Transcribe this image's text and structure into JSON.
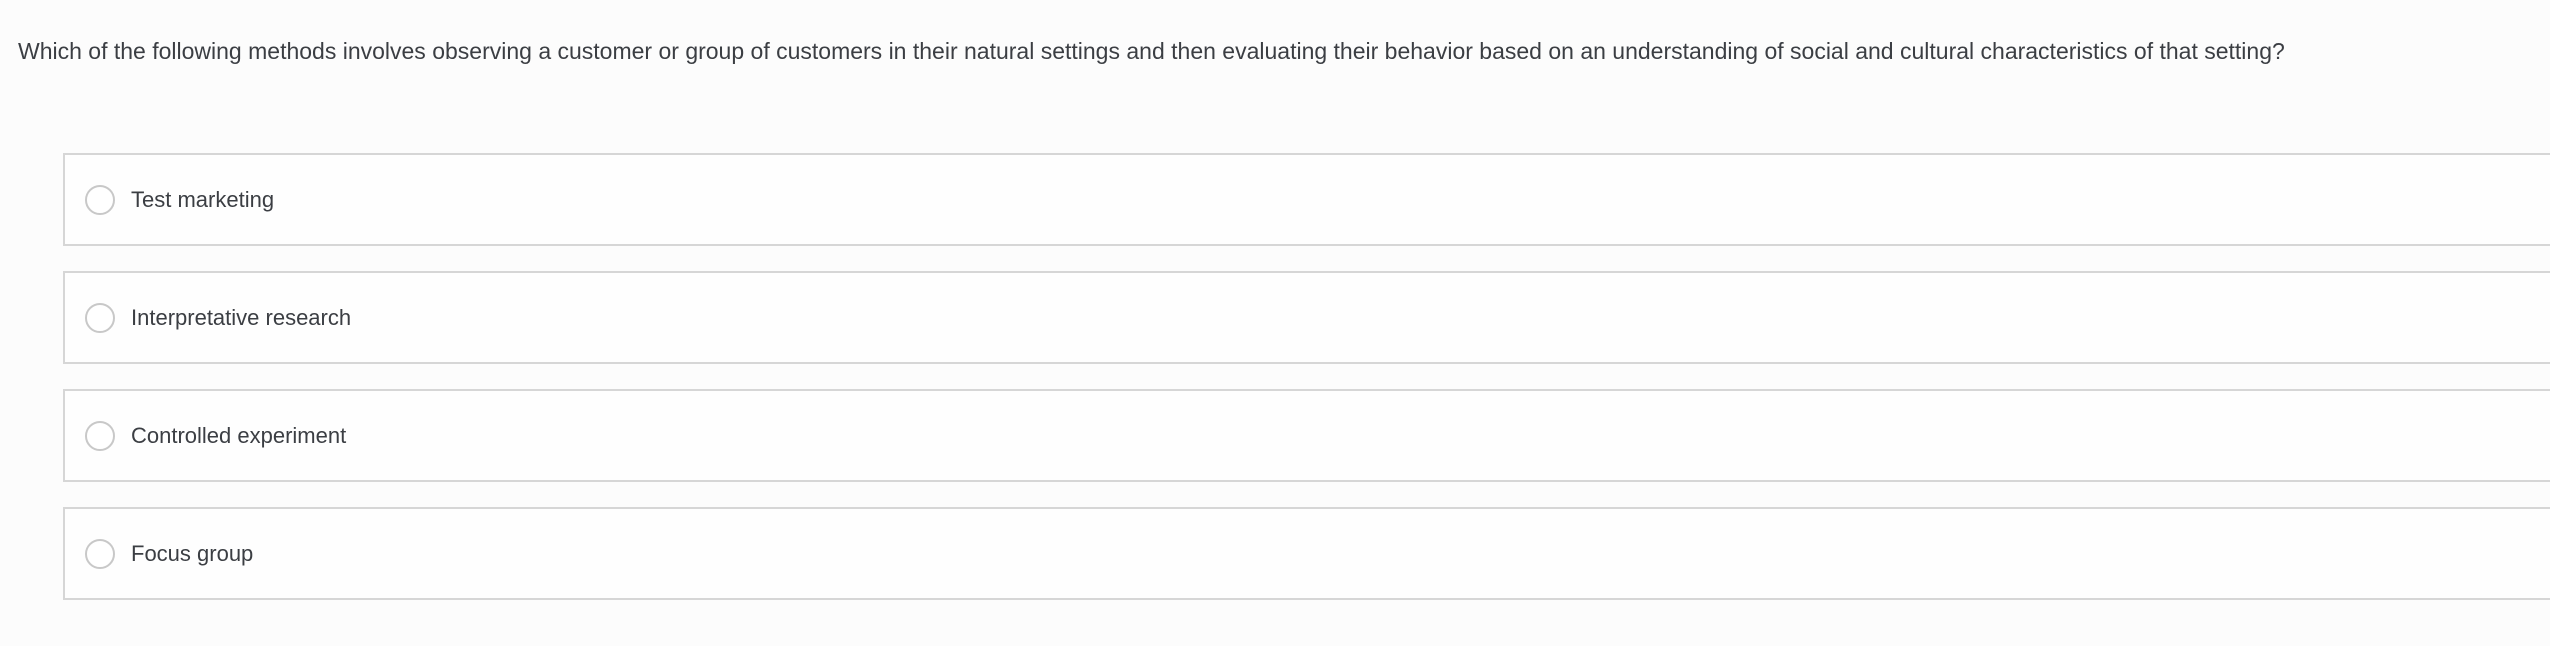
{
  "question": {
    "text": "Which of the following methods involves observing a customer or group of customers in their natural settings and then evaluating their behavior based on an understanding of social and cultural characteristics of that setting?"
  },
  "options": [
    {
      "label": "Test marketing",
      "selected": false
    },
    {
      "label": "Interpretative research",
      "selected": false
    },
    {
      "label": "Controlled experiment",
      "selected": false
    },
    {
      "label": "Focus group",
      "selected": false
    }
  ],
  "colors": {
    "page_background": "#fcfcfc",
    "option_background": "#fefefe",
    "option_border": "#d6d6d6",
    "radio_border": "#c8c8c8",
    "text": "#3b3e43"
  }
}
